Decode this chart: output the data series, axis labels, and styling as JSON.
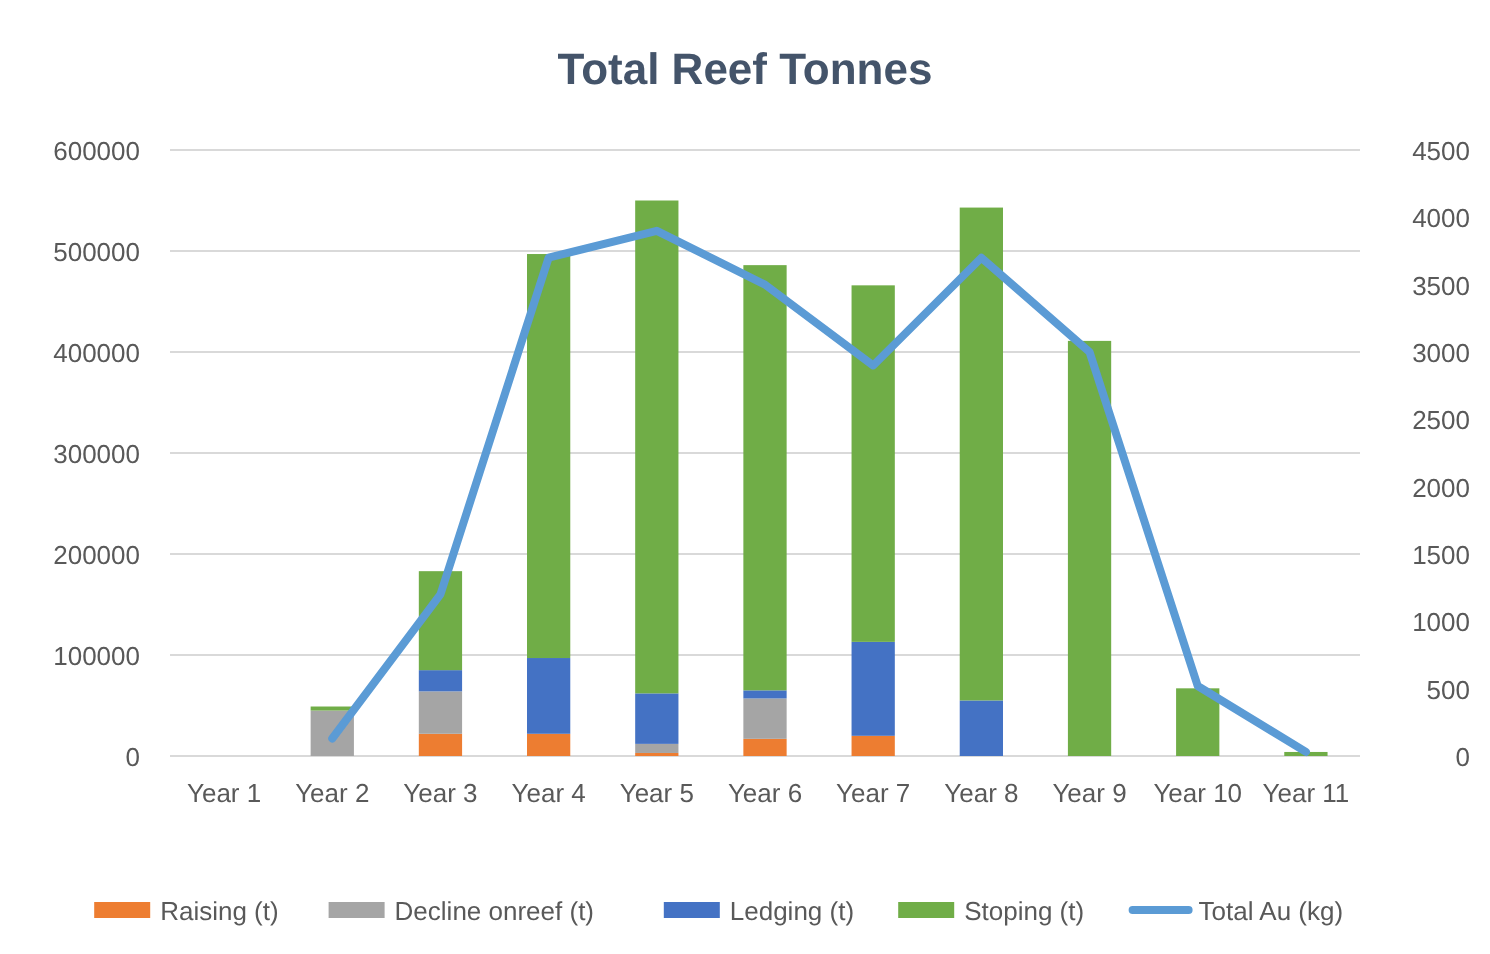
{
  "chart_data": {
    "type": "bar",
    "title": "Total Reef Tonnes",
    "stacked": true,
    "categories": [
      "Year 1",
      "Year 2",
      "Year 3",
      "Year 4",
      "Year 5",
      "Year 6",
      "Year 7",
      "Year 8",
      "Year 9",
      "Year 10",
      "Year 11"
    ],
    "series": [
      {
        "name": "Raising (t)",
        "color": "#ed7d31",
        "values": [
          0,
          0,
          22000,
          22000,
          3000,
          17000,
          20000,
          0,
          0,
          0,
          0
        ]
      },
      {
        "name": "Decline onreef (t)",
        "color": "#a5a5a5",
        "values": [
          0,
          45000,
          42000,
          0,
          9000,
          40000,
          0,
          0,
          0,
          0,
          0
        ]
      },
      {
        "name": "Ledging (t)",
        "color": "#4472c4",
        "values": [
          0,
          0,
          21000,
          75000,
          50000,
          8000,
          93000,
          55000,
          0,
          0,
          0
        ]
      },
      {
        "name": "Stoping (t)",
        "color": "#70ad47",
        "values": [
          0,
          4000,
          98000,
          400000,
          488000,
          421000,
          353000,
          488000,
          411000,
          67000,
          4000
        ]
      },
      {
        "name": "Total Au (kg)",
        "type": "line",
        "axis": "y2",
        "color": "#5b9bd5",
        "values": [
          null,
          130,
          1200,
          3700,
          3900,
          3500,
          2900,
          3700,
          3000,
          520,
          30
        ]
      }
    ],
    "ylim": [
      0,
      600000
    ],
    "yticks": [
      0,
      100000,
      200000,
      300000,
      400000,
      500000,
      600000
    ],
    "y2lim": [
      0,
      4500
    ],
    "y2ticks": [
      0,
      500,
      1000,
      1500,
      2000,
      2500,
      3000,
      3500,
      4000,
      4500
    ],
    "grid": "y",
    "legend": "bottom",
    "line_style": "solid"
  }
}
